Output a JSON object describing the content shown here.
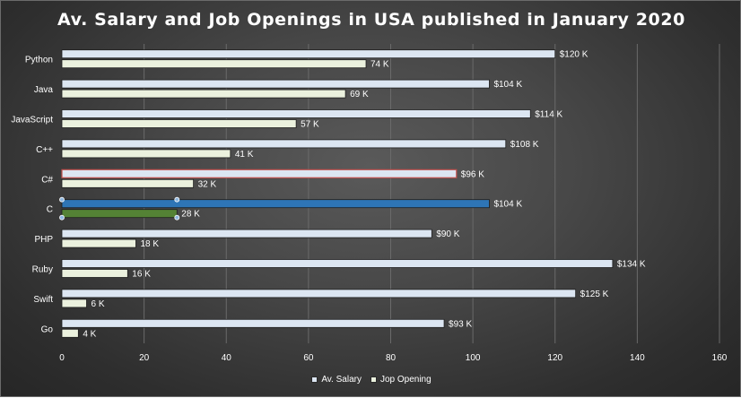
{
  "chart_data": {
    "type": "bar",
    "orientation": "horizontal",
    "title": "Av. Salary and Job Openings in USA published in January 2020",
    "categories": [
      "Python",
      "Java",
      "JavaScript",
      "C++",
      "C#",
      "C",
      "PHP",
      "Ruby",
      "Swift",
      "Go"
    ],
    "series": [
      {
        "name": "Av. Salary",
        "values": [
          120,
          104,
          114,
          108,
          96,
          104,
          90,
          134,
          125,
          93
        ],
        "labels": [
          "$120 K",
          "$104 K",
          "$114 K",
          "$108 K",
          "$96 K",
          "$104 K",
          "$90 K",
          "$134 K",
          "$125 K",
          "$93 K"
        ],
        "color": "#dce6f2"
      },
      {
        "name": "Jop Opening",
        "values": [
          74,
          69,
          57,
          41,
          32,
          28,
          18,
          16,
          6,
          4
        ],
        "labels": [
          "74 K",
          "69 K",
          "57 K",
          "41 K",
          "32 K",
          "28 K",
          "18 K",
          "16 K",
          "6 K",
          "4 K"
        ],
        "color": "#ebf1de"
      }
    ],
    "highlights": {
      "C#": {
        "Av. Salary": {
          "stroke": "#c0504d"
        }
      },
      "C": {
        "Av. Salary": {
          "fill": "#2e75b6"
        },
        "Jop Opening": {
          "fill": "#548235"
        }
      }
    },
    "xlim": [
      0,
      160
    ],
    "xticks": [
      0,
      20,
      40,
      60,
      80,
      100,
      120,
      140,
      160
    ],
    "xlabel": "",
    "ylabel": "",
    "grid": "vertical",
    "legend_position": "bottom"
  },
  "colors": {
    "gridline": "#6a6a6a",
    "selection_handle": "#8fb8e0"
  }
}
